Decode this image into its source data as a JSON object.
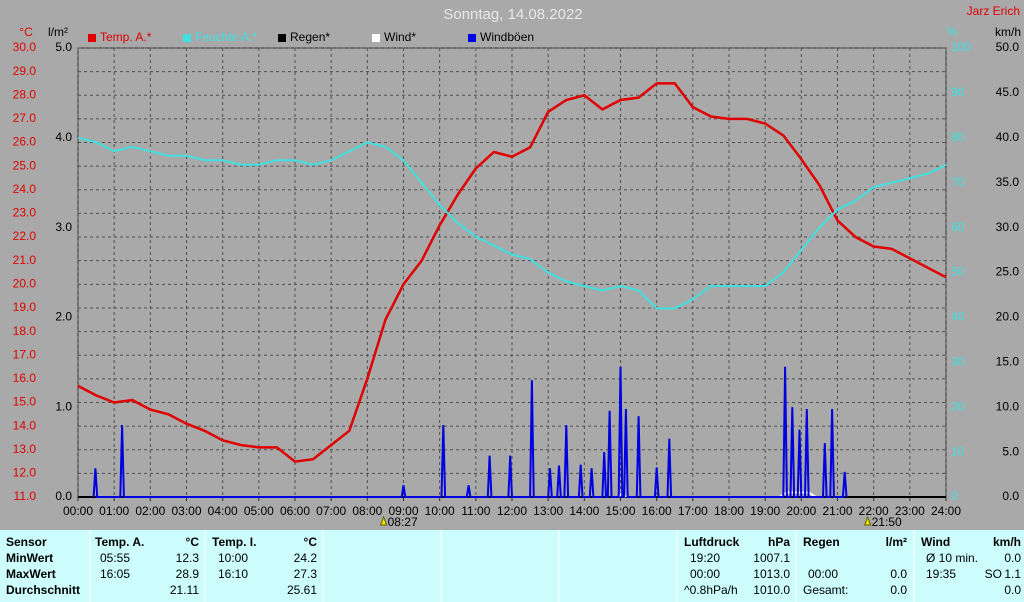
{
  "chart_data": {
    "type": "line",
    "title": "Sonntag, 14.08.2022",
    "author": "Jarz Erich",
    "xlim": [
      0,
      24
    ],
    "xticks": [
      {
        "value": 0,
        "label": "00:00"
      },
      {
        "value": 1,
        "label": "01:00"
      },
      {
        "value": 2,
        "label": "02:00"
      },
      {
        "value": 3,
        "label": "03:00"
      },
      {
        "value": 4,
        "label": "04:00"
      },
      {
        "value": 5,
        "label": "05:00"
      },
      {
        "value": 6,
        "label": "06:00"
      },
      {
        "value": 7,
        "label": "07:00"
      },
      {
        "value": 8,
        "label": "08:00"
      },
      {
        "value": 9,
        "label": "09:00"
      },
      {
        "value": 10,
        "label": "10:00"
      },
      {
        "value": 11,
        "label": "11:00"
      },
      {
        "value": 12,
        "label": "12:00"
      },
      {
        "value": 13,
        "label": "13:00"
      },
      {
        "value": 14,
        "label": "14:00"
      },
      {
        "value": 15,
        "label": "15:00"
      },
      {
        "value": 16,
        "label": "16:00"
      },
      {
        "value": 17,
        "label": "17:00"
      },
      {
        "value": 18,
        "label": "18:00"
      },
      {
        "value": 19,
        "label": "19:00"
      },
      {
        "value": 20,
        "label": "20:00"
      },
      {
        "value": 21,
        "label": "21:00"
      },
      {
        "value": 22,
        "label": "22:00"
      },
      {
        "value": 23,
        "label": "23:00"
      },
      {
        "value": 24,
        "label": "24:00"
      }
    ],
    "ylabel": "°C",
    "ylim": [
      11,
      30
    ],
    "yticks": [
      {
        "value": 11,
        "label": "11.0"
      },
      {
        "value": 12,
        "label": "12.0"
      },
      {
        "value": 13,
        "label": "13.0"
      },
      {
        "value": 14,
        "label": "14.0"
      },
      {
        "value": 15,
        "label": "15.0"
      },
      {
        "value": 16,
        "label": "16.0"
      },
      {
        "value": 17,
        "label": "17.0"
      },
      {
        "value": 18,
        "label": "18.0"
      },
      {
        "value": 19,
        "label": "19.0"
      },
      {
        "value": 20,
        "label": "20.0"
      },
      {
        "value": 21,
        "label": "21.0"
      },
      {
        "value": 22,
        "label": "22.0"
      },
      {
        "value": 23,
        "label": "23.0"
      },
      {
        "value": 24,
        "label": "24.0"
      },
      {
        "value": 25,
        "label": "25.0"
      },
      {
        "value": 26,
        "label": "26.0"
      },
      {
        "value": 27,
        "label": "27.0"
      },
      {
        "value": 28,
        "label": "28.0"
      },
      {
        "value": 29,
        "label": "29.0"
      },
      {
        "value": 30,
        "label": "30.0"
      }
    ],
    "y2label": "%",
    "y2lim": [
      0,
      100
    ],
    "y2ticks": [
      0,
      10,
      20,
      30,
      40,
      50,
      60,
      70,
      80,
      90,
      100
    ],
    "y3label": "km/h",
    "y3lim": [
      0,
      50
    ],
    "y3ticks": [
      {
        "value": 0,
        "label": "0.0"
      },
      {
        "value": 5,
        "label": "5.0"
      },
      {
        "value": 10,
        "label": "10.0"
      },
      {
        "value": 15,
        "label": "15.0"
      },
      {
        "value": 20,
        "label": "20.0"
      },
      {
        "value": 25,
        "label": "25.0"
      },
      {
        "value": 30,
        "label": "30.0"
      },
      {
        "value": 35,
        "label": "35.0"
      },
      {
        "value": 40,
        "label": "40.0"
      },
      {
        "value": 45,
        "label": "45.0"
      },
      {
        "value": 50,
        "label": "50.0"
      }
    ],
    "y4label": "l/m²",
    "y4lim": [
      0,
      5
    ],
    "y4ticks": [
      {
        "value": 0,
        "label": "0.0"
      },
      {
        "value": 1,
        "label": "1.0"
      },
      {
        "value": 2,
        "label": "2.0"
      },
      {
        "value": 3,
        "label": "3.0"
      },
      {
        "value": 4,
        "label": "4.0"
      },
      {
        "value": 5,
        "label": "5.0"
      }
    ],
    "grid": true,
    "series": [
      {
        "name": "Temp. A.*",
        "color": "#e00000",
        "axis": "y",
        "x": [
          0,
          0.5,
          1,
          1.5,
          2,
          2.5,
          3,
          3.5,
          4,
          4.5,
          5,
          5.5,
          6,
          6.5,
          7,
          7.5,
          8,
          8.5,
          9,
          9.5,
          10,
          10.5,
          11,
          11.5,
          12,
          12.5,
          13,
          13.5,
          14,
          14.5,
          15,
          15.5,
          16,
          16.5,
          17,
          17.5,
          18,
          18.5,
          19,
          19.5,
          20,
          20.5,
          21,
          21.5,
          22,
          22.5,
          23,
          23.5,
          24
        ],
        "values": [
          15.7,
          15.3,
          15.0,
          15.1,
          14.7,
          14.5,
          14.1,
          13.8,
          13.4,
          13.2,
          13.1,
          13.1,
          12.5,
          12.6,
          13.2,
          13.8,
          16.0,
          18.5,
          20.0,
          21.0,
          22.5,
          23.8,
          24.9,
          25.6,
          25.4,
          25.8,
          27.3,
          27.8,
          28.0,
          27.4,
          27.8,
          27.9,
          28.5,
          28.5,
          27.5,
          27.1,
          27.0,
          27.0,
          26.8,
          26.3,
          25.3,
          24.2,
          22.7,
          22.0,
          21.6,
          21.5,
          21.1,
          20.7,
          20.3
        ]
      },
      {
        "name": "Feuchte A.*",
        "color": "#40e0e0",
        "axis": "y2",
        "x": [
          0,
          0.5,
          1,
          1.5,
          2,
          2.5,
          3,
          3.5,
          4,
          4.5,
          5,
          5.5,
          6,
          6.5,
          7,
          7.5,
          8,
          8.5,
          9,
          9.5,
          10,
          10.5,
          11,
          11.5,
          12,
          12.5,
          13,
          13.5,
          14,
          14.5,
          15,
          15.5,
          16,
          16.5,
          17,
          17.5,
          18,
          18.5,
          19,
          19.5,
          20,
          20.5,
          21,
          21.5,
          22,
          22.5,
          23,
          23.5,
          24
        ],
        "values": [
          80,
          79,
          77,
          78,
          77,
          76,
          76,
          75,
          75,
          74,
          74,
          75,
          75,
          74,
          75,
          77,
          79,
          78,
          75,
          70,
          65,
          61,
          58,
          56,
          54,
          53,
          50,
          48,
          47,
          46,
          47,
          46,
          42,
          42,
          44,
          47,
          47,
          47,
          47,
          50,
          55,
          60,
          64,
          66,
          69,
          70,
          71,
          72,
          74
        ]
      },
      {
        "name": "Regen*",
        "color": "#000000",
        "axis": "y4",
        "x": [
          0,
          24
        ],
        "values": [
          0,
          0
        ]
      },
      {
        "name": "Wind*",
        "color": "#ffffff",
        "axis": "y3",
        "x": [
          14.95,
          15.05,
          15.15,
          17,
          19.4,
          19.6,
          20.2,
          20.4
        ],
        "values": [
          0,
          0.5,
          0,
          null,
          0,
          0.5,
          0.5,
          0
        ]
      },
      {
        "name": "Windböen",
        "color": "#0000e0",
        "axis": "y3",
        "x": [
          0.43,
          0.48,
          0.53,
          1.17,
          1.22,
          1.27,
          8.95,
          9.0,
          9.05,
          10.05,
          10.1,
          10.15,
          10.75,
          10.8,
          10.85,
          11.33,
          11.38,
          11.43,
          11.9,
          11.95,
          12.0,
          12.5,
          12.55,
          12.6,
          13.0,
          13.05,
          13.1,
          13.25,
          13.3,
          13.35,
          13.45,
          13.5,
          13.55,
          13.85,
          13.9,
          13.95,
          14.15,
          14.2,
          14.25,
          14.5,
          14.55,
          14.6,
          14.65,
          14.7,
          14.75,
          14.95,
          15.0,
          15.05,
          15.1,
          15.15,
          15.2,
          15.45,
          15.5,
          15.55,
          15.95,
          16.0,
          16.05,
          16.3,
          16.35,
          16.4,
          19.5,
          19.55,
          19.6,
          19.7,
          19.75,
          19.8,
          19.9,
          19.95,
          20.0,
          20.1,
          20.15,
          20.2,
          20.6,
          20.65,
          20.7,
          20.8,
          20.85,
          20.9,
          21.15,
          21.2,
          21.25
        ],
        "values": [
          0,
          3.2,
          0,
          0,
          8.0,
          0,
          0,
          1.3,
          0,
          0,
          8.0,
          0,
          0,
          1.3,
          0,
          0,
          4.6,
          0,
          0,
          4.6,
          0,
          0,
          13.0,
          0,
          0,
          3.2,
          0,
          0,
          3.5,
          0,
          0,
          8.0,
          0,
          0,
          3.6,
          0,
          0,
          3.2,
          0,
          0,
          5.0,
          0,
          0,
          9.6,
          0,
          0,
          14.5,
          0,
          0,
          9.8,
          0,
          0,
          9.0,
          0,
          0,
          3.3,
          0,
          0,
          6.5,
          0,
          0,
          14.5,
          0,
          0,
          10.0,
          0,
          0,
          7.5,
          0,
          0,
          9.8,
          0,
          0,
          6.0,
          0,
          0,
          9.8,
          0,
          0,
          2.8,
          0
        ]
      }
    ],
    "annotations": [
      {
        "x": 8.45,
        "label": "08:27"
      },
      {
        "x": 21.833,
        "label": "21:50"
      }
    ]
  },
  "table": {
    "labels": {
      "header": "Sensor",
      "min": "MinWert",
      "max": "MaxWert",
      "avg": "Durchschnitt"
    },
    "temp_a": {
      "header": "Temp. A.",
      "unit": "°C",
      "min_time": "05:55",
      "min": "12.3",
      "max_time": "16:05",
      "max": "28.9",
      "avg": "21.11"
    },
    "temp_i": {
      "header": "Temp. I.",
      "unit": "°C",
      "min_time": "10:00",
      "min": "24.2",
      "max_time": "16:10",
      "max": "27.3",
      "avg": "25.61"
    },
    "pressure": {
      "header": "Luftdruck",
      "unit": "hPa",
      "min_time": "19:20",
      "min": "1007.1",
      "max_time": "00:00",
      "max": "1013.0",
      "trend": "^0.8hPa/h",
      "avg": "1010.0"
    },
    "rain": {
      "header": "Regen",
      "unit": "l/m²",
      "max_time": "00:00",
      "max": "0.0",
      "total_label": "Gesamt:",
      "total": "0.0"
    },
    "wind": {
      "header": "Wind",
      "unit": "km/h",
      "avg10_label": "Ø 10 min.",
      "avg10": "0.0",
      "max_time": "19:35",
      "max_dir": "SO",
      "max": "1.1",
      "avg": "0.0"
    }
  }
}
